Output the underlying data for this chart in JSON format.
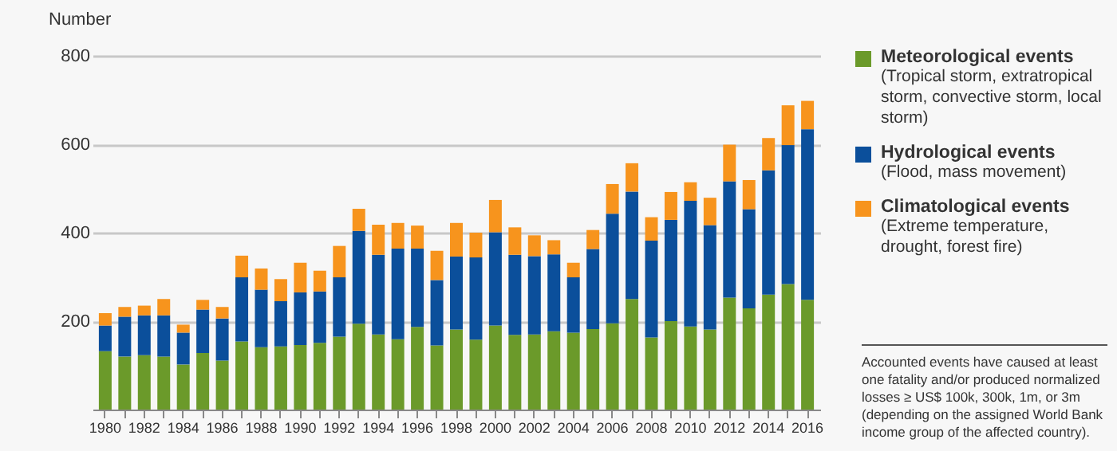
{
  "chart_data": {
    "type": "bar",
    "stacked": true,
    "ylabel": "Number",
    "categories": [
      "1980",
      null,
      "1982",
      null,
      "1984",
      null,
      "1986",
      null,
      "1988",
      null,
      "1990",
      null,
      "1992",
      null,
      "1994",
      null,
      "1996",
      null,
      "1998",
      null,
      "2000",
      null,
      "2002",
      null,
      "2004",
      null,
      "2006",
      null,
      "2008",
      null,
      "2010",
      null,
      "2012",
      null,
      "2014",
      null,
      "2016"
    ],
    "series": [
      {
        "name": "Meteorological events",
        "color": "#6b9a2a",
        "values": [
          132,
          120,
          123,
          120,
          102,
          128,
          111,
          154,
          141,
          143,
          146,
          151,
          165,
          194,
          170,
          159,
          187,
          145,
          181,
          158,
          190,
          169,
          170,
          177,
          174,
          182,
          195,
          250,
          163,
          200,
          188,
          181,
          253,
          229,
          260,
          284,
          248
        ]
      },
      {
        "name": "Hydrological events",
        "color": "#0b4f9b",
        "values": [
          58,
          90,
          90,
          93,
          72,
          98,
          95,
          145,
          130,
          102,
          119,
          116,
          134,
          210,
          180,
          205,
          177,
          148,
          165,
          186,
          211,
          181,
          177,
          174,
          125,
          181,
          248,
          243,
          219,
          229,
          284,
          236,
          263,
          224,
          281,
          314,
          386
        ]
      },
      {
        "name": "Climatological events",
        "color": "#f7941d",
        "values": [
          28,
          22,
          22,
          37,
          18,
          22,
          26,
          49,
          48,
          50,
          67,
          47,
          71,
          50,
          68,
          58,
          52,
          66,
          76,
          56,
          73,
          62,
          47,
          32,
          33,
          43,
          67,
          64,
          53,
          63,
          42,
          62,
          83,
          66,
          73,
          90,
          64
        ]
      }
    ],
    "annotations": [
      "(Tropical storm, extratropical storm, convective storm, local storm)",
      "(Flood, mass movement)",
      "(Extreme temperature, drought, forest fire)",
      "Accounted events have caused at least one fatality and/or produced normalized losses ≥ US$ 100k, 300k, 1m, or 3m (depending on the assigned World Bank income group of the affected country)."
    ],
    "ylim": [
      0,
      800
    ],
    "yticks": [
      200,
      400,
      600,
      800
    ],
    "grid": "y",
    "legend": "right"
  }
}
